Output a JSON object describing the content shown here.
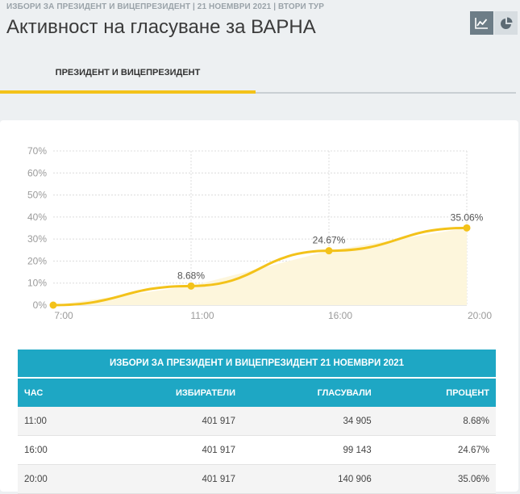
{
  "header": {
    "breadcrumb": "ИЗБОРИ ЗА ПРЕЗИДЕНТ И ВИЦЕПРЕЗИДЕНТ | 21 НОЕМВРИ 2021 | ВТОРИ ТУР",
    "title": "Активност на гласуване за ВАРНА"
  },
  "view_toggle": {
    "active": "line-chart-icon",
    "other": "pie-chart-icon"
  },
  "tabs": [
    {
      "label": "ПРЕЗИДЕНТ И ВИЦЕПРЕЗИДЕНТ",
      "active": true
    }
  ],
  "colors": {
    "accent": "#f3c21a",
    "table_header": "#1ea7c4",
    "line": "#f3c21a",
    "area": "#fdf6dc"
  },
  "chart_data": {
    "type": "area",
    "title": "",
    "xlabel": "",
    "ylabel": "",
    "x": [
      "7:00",
      "11:00",
      "16:00",
      "20:00"
    ],
    "series": [
      {
        "values": [
          0,
          8.68,
          24.67,
          35.06
        ],
        "labels": [
          "",
          "8.68%",
          "24.67%",
          "35.06%"
        ]
      }
    ],
    "ylim": [
      0,
      70
    ],
    "yticks": [
      0,
      10,
      20,
      30,
      40,
      50,
      60,
      70
    ],
    "ytick_labels": [
      "0%",
      "10%",
      "20%",
      "30%",
      "40%",
      "50%",
      "60%",
      "70%"
    ],
    "grid": true,
    "legend": "none"
  },
  "table": {
    "caption": "ИЗБОРИ ЗА ПРЕЗИДЕНТ И ВИЦЕПРЕЗИДЕНТ 21 НОЕМВРИ 2021",
    "headers": [
      "ЧАС",
      "ИЗБИРАТЕЛИ",
      "ГЛАСУВАЛИ",
      "ПРОЦЕНТ"
    ],
    "rows": [
      [
        "11:00",
        "401 917",
        "34 905",
        "8.68%"
      ],
      [
        "16:00",
        "401 917",
        "99 143",
        "24.67%"
      ],
      [
        "20:00",
        "401 917",
        "140 906",
        "35.06%"
      ]
    ]
  }
}
